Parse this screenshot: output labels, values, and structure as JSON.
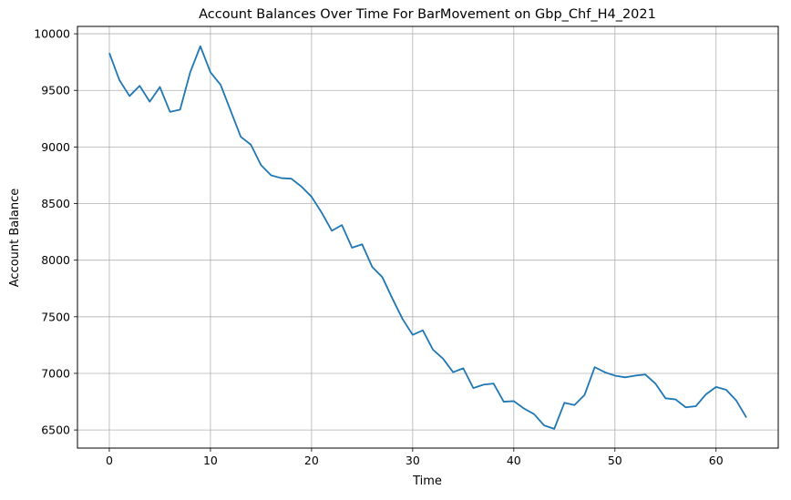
{
  "chart_data": {
    "type": "line",
    "title": "Account Balances Over Time For BarMovement on Gbp_Chf_H4_2021",
    "xlabel": "Time",
    "ylabel": "Account Balance",
    "xlim": [
      -3.15,
      66.15
    ],
    "ylim": [
      6340,
      10065
    ],
    "xticks": [
      0,
      10,
      20,
      30,
      40,
      50,
      60
    ],
    "yticks": [
      6500,
      7000,
      7500,
      8000,
      8500,
      9000,
      9500,
      10000
    ],
    "grid": true,
    "line_color": "#1f77b4",
    "series": [
      {
        "x": [
          0,
          1,
          2,
          3,
          4,
          5,
          6,
          7,
          8,
          9,
          10,
          11,
          12,
          13,
          14,
          15,
          16,
          17,
          18,
          19,
          20,
          21,
          22,
          23,
          24,
          25,
          26,
          27,
          28,
          29,
          30,
          31,
          32,
          33,
          34,
          35,
          36,
          37,
          38,
          39,
          40,
          41,
          42,
          43,
          44,
          45,
          46,
          47,
          48,
          49,
          50,
          51,
          52,
          53,
          54,
          55,
          56,
          57,
          58,
          59,
          60,
          61,
          62,
          63
        ],
        "values": [
          9830,
          9590,
          9450,
          9540,
          9400,
          9530,
          9310,
          9330,
          9660,
          9890,
          9660,
          9550,
          9320,
          9090,
          9020,
          8840,
          8750,
          8725,
          8720,
          8650,
          8560,
          8420,
          8260,
          8310,
          8110,
          8140,
          7940,
          7850,
          7660,
          7480,
          7340,
          7380,
          7210,
          7130,
          7010,
          7045,
          6870,
          6900,
          6910,
          6750,
          6755,
          6690,
          6640,
          6540,
          6510,
          6740,
          6720,
          6810,
          7055,
          7010,
          6980,
          6965,
          6980,
          6990,
          6910,
          6780,
          6770,
          6700,
          6710,
          6815,
          6880,
          6855,
          6760,
          6610
        ]
      }
    ]
  }
}
